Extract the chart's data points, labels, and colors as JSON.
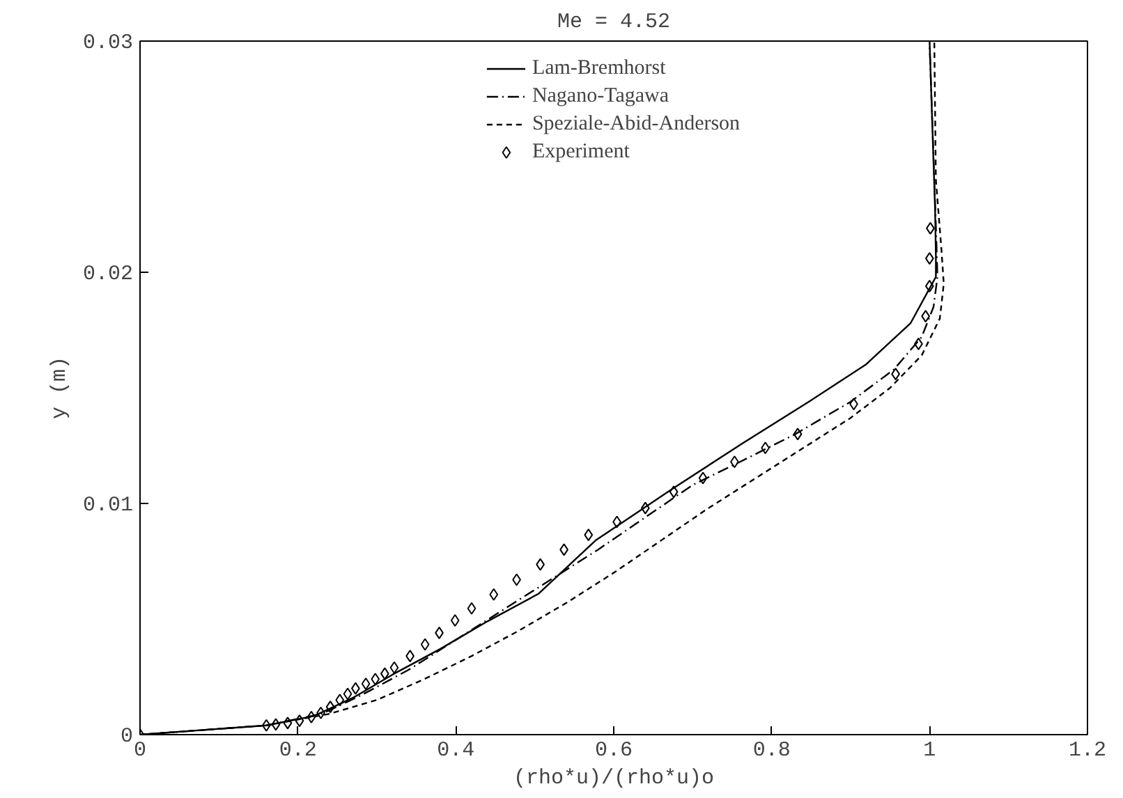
{
  "chart_data": {
    "type": "line",
    "title": "Me = 4.52",
    "xlabel": "(rho*u)/(rho*u)o",
    "ylabel": "y (m)",
    "xlim": [
      0,
      1.2
    ],
    "ylim": [
      0,
      0.03
    ],
    "xticks": [
      0,
      0.2,
      0.4,
      0.6,
      0.8,
      1,
      1.2
    ],
    "yticks": [
      0,
      0.01,
      0.02,
      0.03
    ],
    "grid": false,
    "legend": "top",
    "series": [
      {
        "name": "Lam-Bremhorst",
        "color": "#000000",
        "line_style": "solid",
        "x": [
          0,
          0.16,
          0.22,
          0.27,
          0.32,
          0.38,
          0.44,
          0.505,
          0.577,
          0.673,
          0.763,
          0.847,
          0.919,
          0.976,
          1.008,
          1.008,
          1.007,
          1.0
        ],
        "values": [
          0,
          0.0004,
          0.0008,
          0.0016,
          0.0026,
          0.0037,
          0.0049,
          0.0061,
          0.0084,
          0.0106,
          0.0126,
          0.0144,
          0.016,
          0.0178,
          0.0198,
          0.0207,
          0.0227,
          0.03
        ]
      },
      {
        "name": "Nagano-Tagawa",
        "color": "#000000",
        "line_style": "dashdot",
        "x": [
          0,
          0.16,
          0.23,
          0.28,
          0.34,
          0.4,
          0.46,
          0.52,
          0.58,
          0.64,
          0.7,
          0.76,
          0.83,
          0.9,
          0.955,
          0.99,
          1.005,
          1.01,
          1.008,
          1.0
        ],
        "values": [
          0,
          0.0004,
          0.0009,
          0.0017,
          0.0028,
          0.0041,
          0.0054,
          0.0067,
          0.008,
          0.0094,
          0.0108,
          0.0118,
          0.013,
          0.0144,
          0.0158,
          0.0172,
          0.0185,
          0.0198,
          0.022,
          0.0299
        ]
      },
      {
        "name": "Speziale-Abid-Anderson",
        "color": "#000000",
        "line_style": "dashed",
        "x": [
          0,
          0.16,
          0.24,
          0.3,
          0.36,
          0.42,
          0.48,
          0.54,
          0.6,
          0.66,
          0.72,
          0.78,
          0.84,
          0.9,
          0.95,
          0.99,
          1.013,
          1.018,
          1.015,
          1.008,
          1.006
        ],
        "values": [
          0,
          0.0004,
          0.0009,
          0.0015,
          0.0024,
          0.0034,
          0.0045,
          0.0057,
          0.007,
          0.0084,
          0.0098,
          0.0111,
          0.0124,
          0.0137,
          0.015,
          0.0164,
          0.018,
          0.0195,
          0.021,
          0.024,
          0.03
        ]
      },
      {
        "name": "Experiment",
        "color": "#000000",
        "type": "scatter",
        "marker": "diamond",
        "x": [
          0,
          0.16,
          0.172,
          0.187,
          0.202,
          0.217,
          0.229,
          0.241,
          0.253,
          0.263,
          0.273,
          0.286,
          0.298,
          0.31,
          0.322,
          0.342,
          0.361,
          0.379,
          0.399,
          0.42,
          0.448,
          0.477,
          0.507,
          0.537,
          0.568,
          0.604,
          0.64,
          0.676,
          0.713,
          0.753,
          0.792,
          0.833,
          0.904,
          0.957,
          0.986,
          0.995,
          1.0,
          1.0,
          1.001
        ],
        "values": [
          0,
          0.0004,
          0.00044,
          0.0005,
          0.0006,
          0.00076,
          0.00094,
          0.0012,
          0.0015,
          0.00176,
          0.002,
          0.0022,
          0.0024,
          0.00264,
          0.0029,
          0.0034,
          0.0039,
          0.0044,
          0.00494,
          0.00546,
          0.00606,
          0.0067,
          0.00736,
          0.008,
          0.00864,
          0.0092,
          0.0098,
          0.0105,
          0.0111,
          0.0118,
          0.0124,
          0.013,
          0.0143,
          0.0156,
          0.0169,
          0.0181,
          0.0194,
          0.0206,
          0.0219
        ]
      }
    ]
  }
}
